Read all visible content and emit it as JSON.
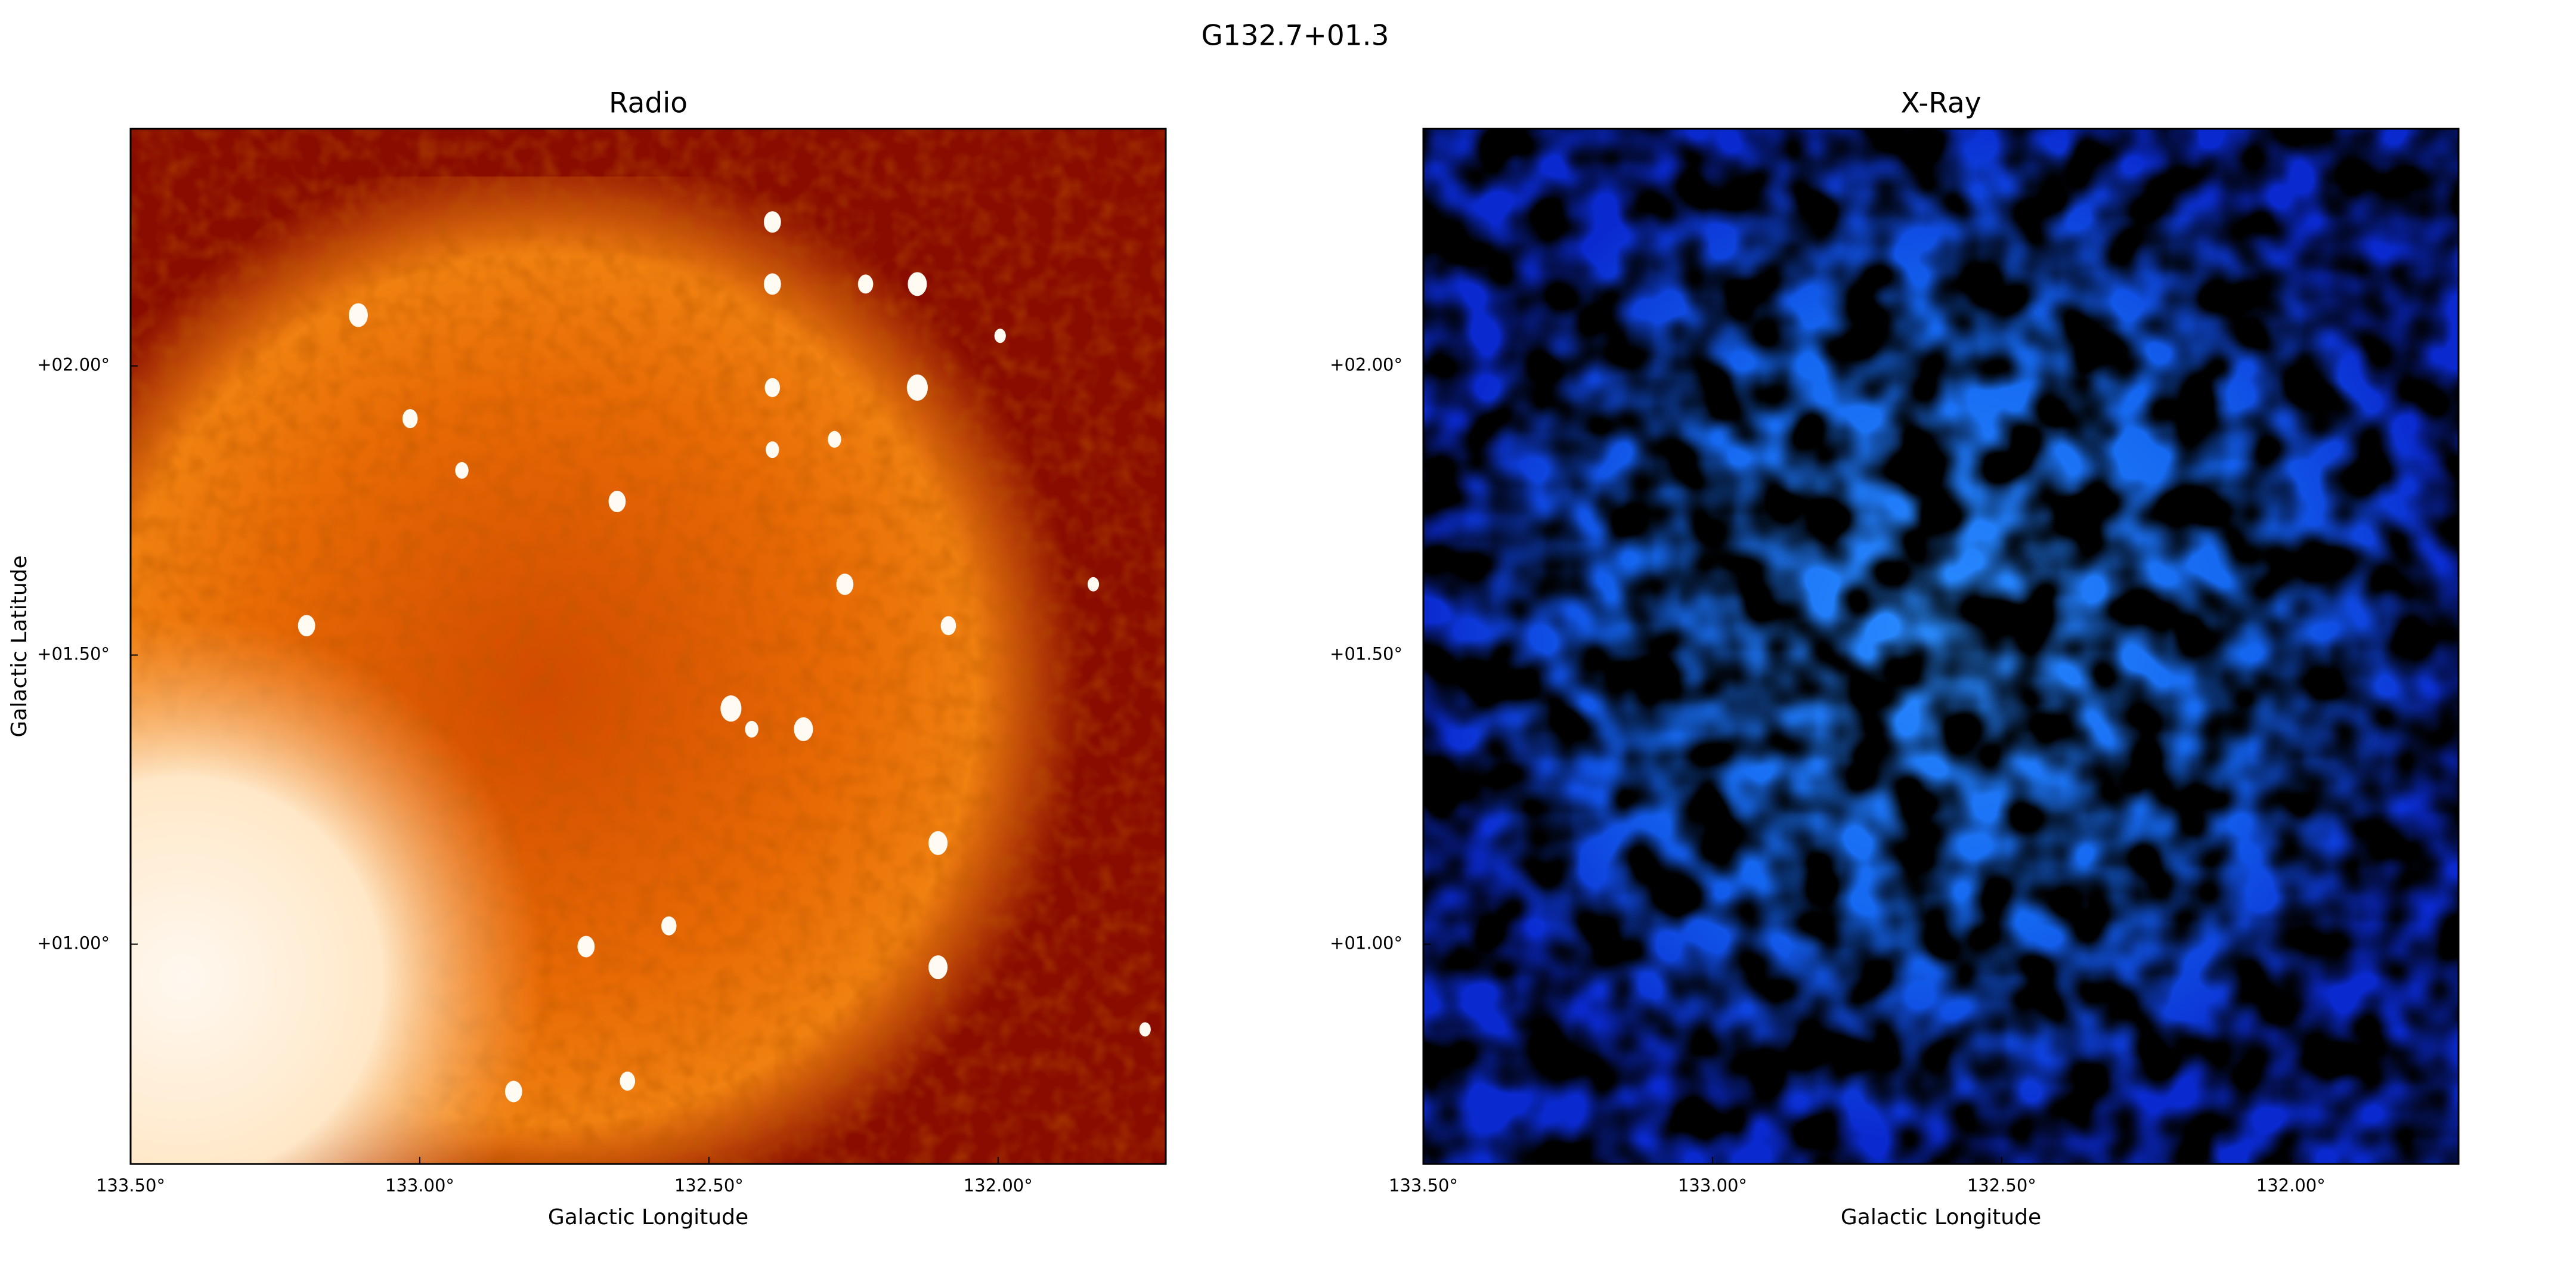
{
  "title": "G132.7+01.3",
  "chart_data": [
    {
      "type": "image",
      "title": "Radio",
      "xlabel": "Galactic Longitude",
      "ylabel": "Galactic Latitude",
      "colormap": "hot",
      "xlim": [
        133.5,
        131.71
      ],
      "ylim": [
        0.62,
        2.41
      ],
      "xticks": [
        {
          "value": 133.5,
          "label": "133.50°"
        },
        {
          "value": 133.0,
          "label": "133.00°"
        },
        {
          "value": 132.5,
          "label": "132.50°"
        },
        {
          "value": 132.0,
          "label": "132.00°"
        }
      ],
      "yticks": [
        {
          "value": 1.0,
          "label": "+01.00°"
        },
        {
          "value": 1.5,
          "label": "+01.50°"
        },
        {
          "value": 2.0,
          "label": "+02.00°"
        }
      ]
    },
    {
      "type": "image",
      "title": "X-Ray",
      "xlabel": "Galactic Longitude",
      "colormap": "blue",
      "xlim": [
        133.5,
        131.71
      ],
      "ylim": [
        0.62,
        2.41
      ],
      "xticks": [
        {
          "value": 133.5,
          "label": "133.50°"
        },
        {
          "value": 133.0,
          "label": "133.00°"
        },
        {
          "value": 132.5,
          "label": "132.50°"
        },
        {
          "value": 132.0,
          "label": "132.00°"
        }
      ],
      "yticks": [
        {
          "value": 1.0,
          "label": "+01.00°"
        },
        {
          "value": 1.5,
          "label": "+01.50°"
        },
        {
          "value": 2.0,
          "label": "+02.00°"
        }
      ]
    }
  ]
}
